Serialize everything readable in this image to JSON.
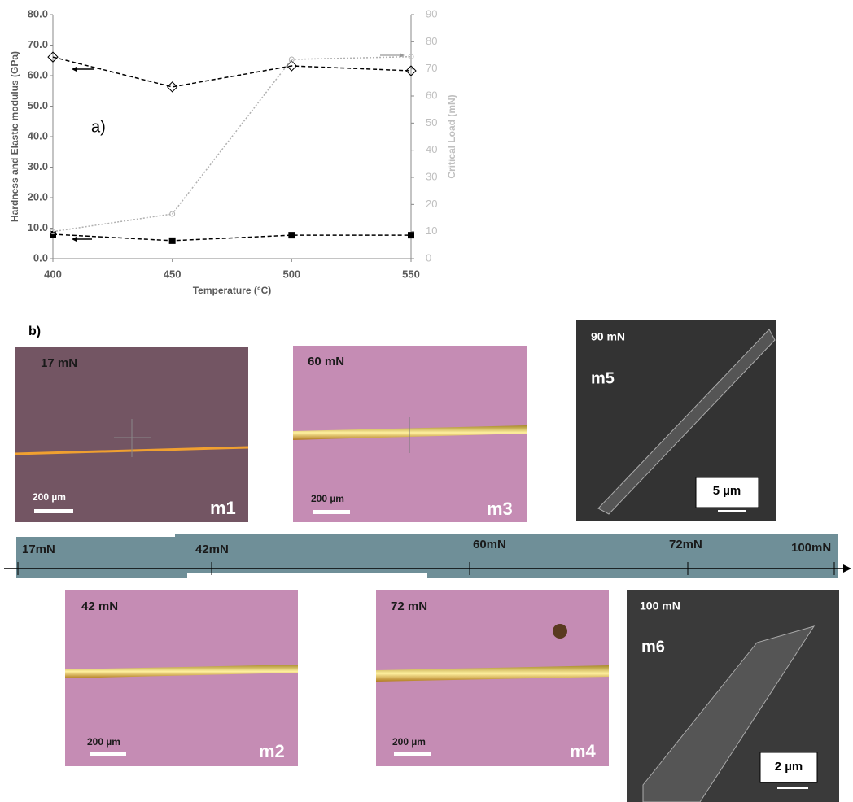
{
  "chart_data": {
    "type": "line",
    "annotation": "a)",
    "xlabel": "Temperature (°C)",
    "ylabel": "Hardness and Elastic modulus (GPa)",
    "y2label": "Critical Load (mN)",
    "x": [
      400,
      450,
      500,
      550
    ],
    "xlim": [
      400,
      550
    ],
    "xticks": [
      400,
      450,
      500,
      550
    ],
    "ylim": [
      0,
      80
    ],
    "yticks": [
      {
        "value": 0,
        "label": "0.0"
      },
      {
        "value": 10,
        "label": "10.0"
      },
      {
        "value": 20,
        "label": "20.0"
      },
      {
        "value": 30,
        "label": "30.0"
      },
      {
        "value": 40,
        "label": "40.0"
      },
      {
        "value": 50,
        "label": "50.0"
      },
      {
        "value": 60,
        "label": "60.0"
      },
      {
        "value": 70,
        "label": "70.0"
      },
      {
        "value": 80,
        "label": "80.0"
      }
    ],
    "y2lim": [
      0,
      90
    ],
    "y2ticks": [
      0,
      10,
      20,
      30,
      40,
      50,
      60,
      70,
      80,
      90
    ],
    "grid": false,
    "series": [
      {
        "color": "#000000",
        "linestyle": "dashed",
        "marker": "diamond-open",
        "values": [
          66.1,
          56.3,
          63.2,
          61.6
        ]
      },
      {
        "color": "#000000",
        "linestyle": "dashed",
        "marker": "square",
        "values": [
          8.0,
          5.9,
          7.7,
          7.7
        ]
      },
      {
        "color": "#b0b0b0",
        "linestyle": "dotted",
        "marker": "circle-open",
        "axis": "y2",
        "values": [
          10,
          16.5,
          73.5,
          74.5
        ]
      }
    ]
  },
  "panel_b": {
    "label": "b)",
    "m1": {
      "load": "17 mN",
      "scale": "200 µm",
      "id": "m1"
    },
    "m3": {
      "load": "60 mN",
      "scale": "200 µm",
      "id": "m3"
    },
    "m5": {
      "load": "90 mN",
      "scale": "5 µm",
      "id": "m5"
    },
    "m2": {
      "load": "42 mN",
      "scale": "200 µm",
      "id": "m2"
    },
    "m4": {
      "load": "72 mN",
      "scale": "200 µm",
      "id": "m4"
    },
    "m6": {
      "load": "100 mN",
      "scale": "2 µm",
      "id": "m6"
    },
    "strip": [
      "17mN",
      "42mN",
      "60mN",
      "72mN",
      "100mN"
    ]
  }
}
